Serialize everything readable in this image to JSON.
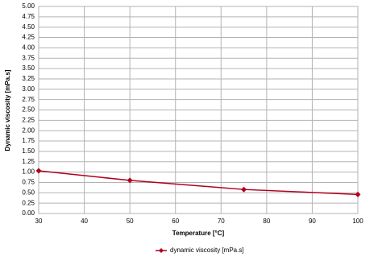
{
  "chart_data": {
    "type": "line",
    "x_label": "Temperature  [°C]",
    "y_label": "Dynamic viscosity [mPa.s]",
    "x": [
      30,
      50,
      75,
      100
    ],
    "series": [
      {
        "name": "dynamic viscosity [mPa.s]",
        "color": "#b0001e",
        "values": [
          1.03,
          0.8,
          0.58,
          0.46
        ]
      }
    ],
    "xlim": [
      30,
      100
    ],
    "xticks": [
      30,
      40,
      50,
      60,
      70,
      80,
      90,
      100
    ],
    "ylim": [
      0,
      5
    ],
    "yticks": [
      {
        "value": 0,
        "label": "0.00"
      },
      {
        "value": 0.25,
        "label": "0.25"
      },
      {
        "value": 0.5,
        "label": "0.50"
      },
      {
        "value": 0.75,
        "label": "0.75"
      },
      {
        "value": 1,
        "label": "1.00"
      },
      {
        "value": 1.25,
        "label": "1.25"
      },
      {
        "value": 1.5,
        "label": "1.50"
      },
      {
        "value": 1.75,
        "label": "1.75"
      },
      {
        "value": 2,
        "label": "2.00"
      },
      {
        "value": 2.25,
        "label": "2.25"
      },
      {
        "value": 2.5,
        "label": "2.50"
      },
      {
        "value": 2.75,
        "label": "2.75"
      },
      {
        "value": 3,
        "label": "3.00"
      },
      {
        "value": 3.25,
        "label": "3.25"
      },
      {
        "value": 3.5,
        "label": "3.50"
      },
      {
        "value": 3.75,
        "label": "3.75"
      },
      {
        "value": 4,
        "label": "4.00"
      },
      {
        "value": 4.25,
        "label": "4.25"
      },
      {
        "value": 4.5,
        "label": "4.50"
      },
      {
        "value": 4.75,
        "label": "4.75"
      },
      {
        "value": 5,
        "label": "5.00"
      }
    ],
    "grid": true,
    "legend": "bottom"
  }
}
